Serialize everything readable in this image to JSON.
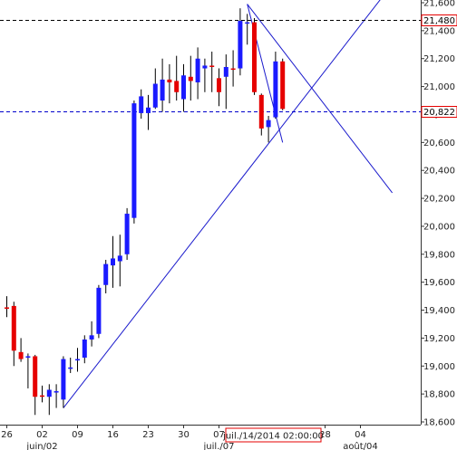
{
  "chart_data": {
    "type": "candlestick",
    "title": "",
    "xlabel": "",
    "ylabel": "",
    "ylim": [
      18600,
      21600
    ],
    "y_ticks": [
      18600,
      18800,
      19000,
      19200,
      19400,
      19600,
      19800,
      20000,
      20200,
      20400,
      20600,
      20800,
      21000,
      21200,
      21400,
      21600
    ],
    "y_tick_labels": [
      "18,600",
      "18,800",
      "19,000",
      "19,200",
      "19,400",
      "19,600",
      "19,800",
      "20,000",
      "20,200",
      "20,400",
      "20,600",
      "20,800",
      "21,000",
      "21,200",
      "21,400",
      "21,600"
    ],
    "x_ticks": [
      {
        "label": "26",
        "bar": 0
      },
      {
        "label": "02",
        "bar": 5
      },
      {
        "label": "09",
        "bar": 10
      },
      {
        "label": "16",
        "bar": 15
      },
      {
        "label": "23",
        "bar": 20
      },
      {
        "label": "30",
        "bar": 25
      },
      {
        "label": "07",
        "bar": 30
      },
      {
        "label": "28",
        "bar": 45
      },
      {
        "label": "04",
        "bar": 50
      }
    ],
    "x_sub_labels": [
      {
        "label": "juin/02",
        "bar": 5
      },
      {
        "label": "juil./07",
        "bar": 30
      },
      {
        "label": "août/04",
        "bar": 50
      }
    ],
    "crosshair_label": "juil./14/2014 02:00:00",
    "crosshair_bar": 35,
    "price_levels": [
      {
        "label": "21,480",
        "value": 21480,
        "style": "dashed",
        "color": "#000000"
      },
      {
        "label": "20,822",
        "value": 20822,
        "style": "dashed",
        "color": "#0000cc"
      }
    ],
    "trendlines": [
      {
        "from": {
          "bar": 8,
          "value": 18700
        },
        "to": {
          "bar": 54,
          "value": 21700
        }
      },
      {
        "from": {
          "bar": 34,
          "value": 21590
        },
        "to": {
          "bar": 54.5,
          "value": 20240
        }
      },
      {
        "from": {
          "bar": 34,
          "value": 21590
        },
        "to": {
          "bar": 39,
          "value": 20600
        }
      }
    ],
    "up_color": "#1a1aff",
    "down_color": "#e60000",
    "candles": [
      {
        "open": 19420,
        "high": 19500,
        "low": 19350,
        "close": 19410
      },
      {
        "open": 19430,
        "high": 19460,
        "low": 19000,
        "close": 19110
      },
      {
        "open": 19100,
        "high": 19200,
        "low": 19030,
        "close": 19050
      },
      {
        "open": 19060,
        "high": 19090,
        "low": 18840,
        "close": 19070
      },
      {
        "open": 19070,
        "high": 19080,
        "low": 18650,
        "close": 18780
      },
      {
        "open": 18790,
        "high": 18860,
        "low": 18740,
        "close": 18780
      },
      {
        "open": 18780,
        "high": 18870,
        "low": 18650,
        "close": 18830
      },
      {
        "open": 18820,
        "high": 18870,
        "low": 18700,
        "close": 18820
      },
      {
        "open": 18760,
        "high": 19070,
        "low": 18700,
        "close": 19050
      },
      {
        "open": 18980,
        "high": 19060,
        "low": 18950,
        "close": 18990
      },
      {
        "open": 19040,
        "high": 19130,
        "low": 18960,
        "close": 19050
      },
      {
        "open": 19060,
        "high": 19220,
        "low": 19020,
        "close": 19190
      },
      {
        "open": 19190,
        "high": 19320,
        "low": 19140,
        "close": 19220
      },
      {
        "open": 19230,
        "high": 19580,
        "low": 19200,
        "close": 19560
      },
      {
        "open": 19580,
        "high": 19760,
        "low": 19520,
        "close": 19730
      },
      {
        "open": 19720,
        "high": 19930,
        "low": 19560,
        "close": 19770
      },
      {
        "open": 19750,
        "high": 19940,
        "low": 19570,
        "close": 19790
      },
      {
        "open": 19800,
        "high": 20130,
        "low": 19760,
        "close": 20090
      },
      {
        "open": 20060,
        "high": 20900,
        "low": 20020,
        "close": 20880
      },
      {
        "open": 20810,
        "high": 20980,
        "low": 20770,
        "close": 20930
      },
      {
        "open": 20810,
        "high": 20940,
        "low": 20690,
        "close": 20850
      },
      {
        "open": 20850,
        "high": 21130,
        "low": 20840,
        "close": 21020
      },
      {
        "open": 20900,
        "high": 21200,
        "low": 20820,
        "close": 21050
      },
      {
        "open": 21050,
        "high": 21160,
        "low": 20880,
        "close": 21030
      },
      {
        "open": 21040,
        "high": 21220,
        "low": 20900,
        "close": 20960
      },
      {
        "open": 20910,
        "high": 21160,
        "low": 20820,
        "close": 21080
      },
      {
        "open": 21070,
        "high": 21220,
        "low": 20900,
        "close": 21040
      },
      {
        "open": 21030,
        "high": 21280,
        "low": 20910,
        "close": 21200
      },
      {
        "open": 21130,
        "high": 21200,
        "low": 20960,
        "close": 21150
      },
      {
        "open": 21150,
        "high": 21250,
        "low": 20960,
        "close": 21140
      },
      {
        "open": 21060,
        "high": 21130,
        "low": 20860,
        "close": 20960
      },
      {
        "open": 21070,
        "high": 21230,
        "low": 20840,
        "close": 21140
      },
      {
        "open": 21130,
        "high": 21260,
        "low": 21000,
        "close": 21120
      },
      {
        "open": 21130,
        "high": 21560,
        "low": 21080,
        "close": 21470
      },
      {
        "open": 21460,
        "high": 21520,
        "low": 21300,
        "close": 21460
      },
      {
        "open": 21460,
        "high": 21490,
        "low": 20940,
        "close": 20960
      },
      {
        "open": 20940,
        "high": 20950,
        "low": 20650,
        "close": 20700
      },
      {
        "open": 20710,
        "high": 20790,
        "low": 20600,
        "close": 20760
      },
      {
        "open": 20780,
        "high": 21250,
        "low": 20770,
        "close": 21180
      },
      {
        "open": 21180,
        "high": 21200,
        "low": 20830,
        "close": 20840
      }
    ]
  }
}
